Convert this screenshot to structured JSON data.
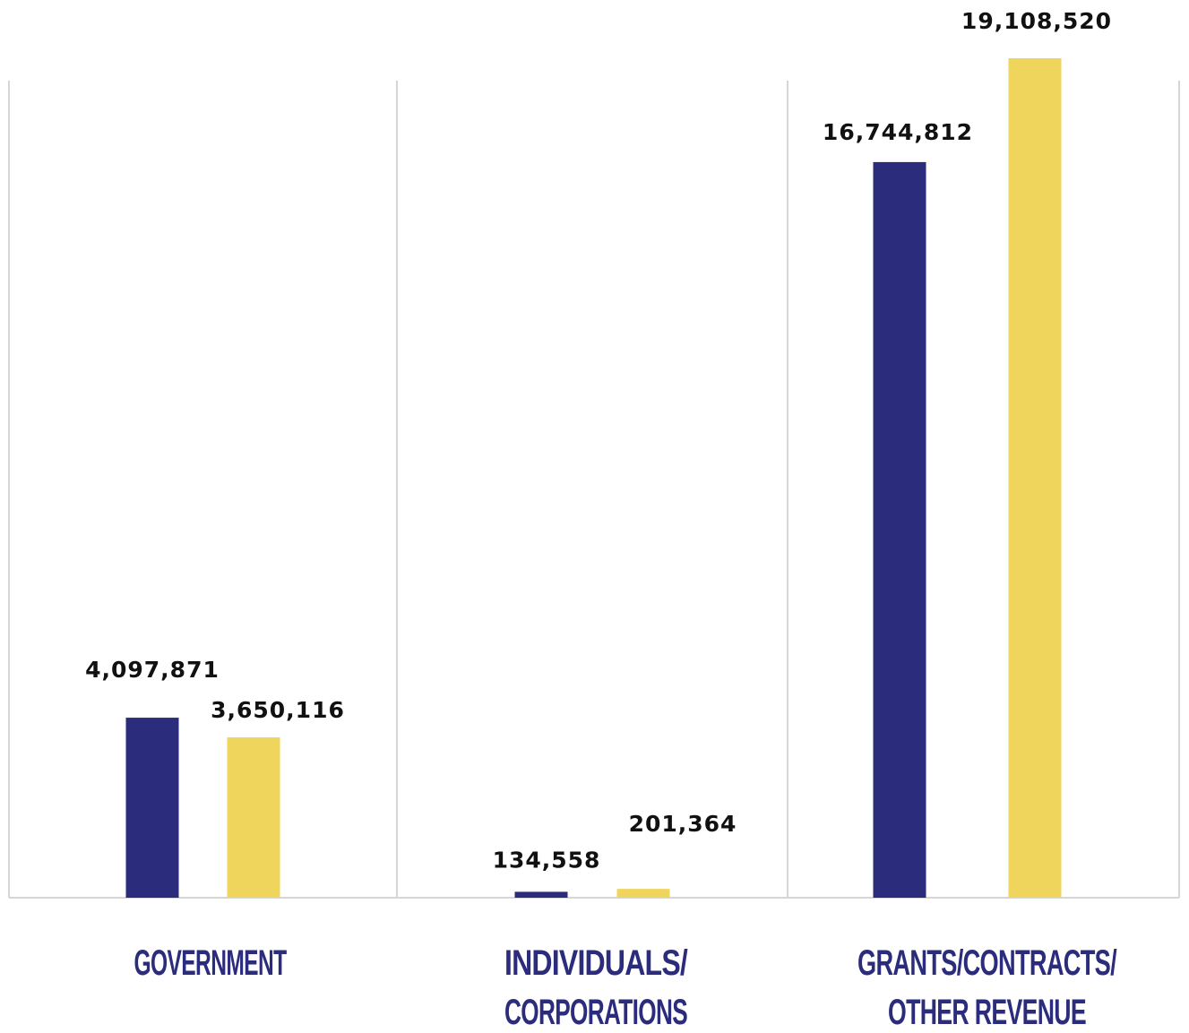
{
  "chart_data": {
    "type": "bar",
    "categories": [
      [
        "GOVERNMENT"
      ],
      [
        "INDIVIDUALS/",
        "CORPORATIONS"
      ],
      [
        "GRANTS/CONTRACTS/",
        "OTHER REVENUE"
      ]
    ],
    "series": [
      {
        "color": "#2b2c7c",
        "values": [
          4097871,
          134558,
          16744812
        ]
      },
      {
        "color": "#f0d55c",
        "values": [
          3650116,
          201364,
          19108520
        ]
      }
    ],
    "value_labels": [
      [
        "4,097,871",
        "134,558",
        "16,744,812"
      ],
      [
        "3,650,116",
        "201,364",
        "19,108,520"
      ]
    ],
    "ylim": [
      0,
      19108520
    ],
    "grid": "vertical separators between categories",
    "legend": "none",
    "xlabel": "",
    "ylabel": ""
  }
}
